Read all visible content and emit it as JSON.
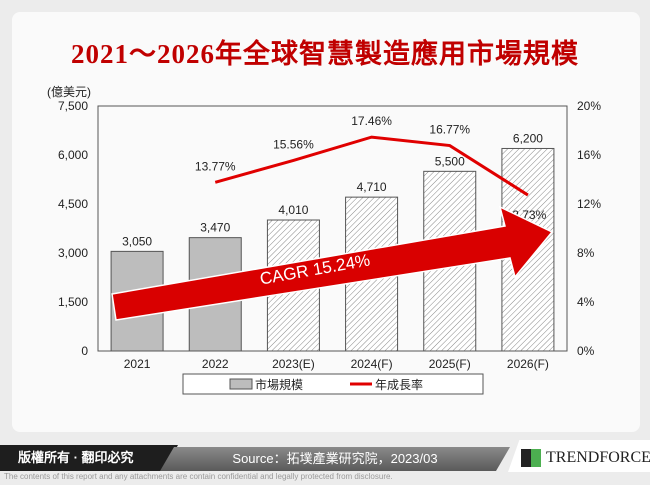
{
  "chart_data": {
    "type": "bar+line",
    "title": "2021～2026年全球智慧製造應用市場規模",
    "ylabel": "(億美元)",
    "categories": [
      "2021",
      "2022",
      "2023(E)",
      "2024(F)",
      "2025(F)",
      "2026(F)"
    ],
    "ylim": [
      0,
      7500
    ],
    "yticks": [
      "0",
      "1,500",
      "3,000",
      "4,500",
      "6,000",
      "7,500"
    ],
    "y2lim": [
      0,
      20
    ],
    "y2ticks": [
      "0%",
      "4%",
      "8%",
      "12%",
      "16%",
      "20%"
    ],
    "series": [
      {
        "name": "市場規模",
        "type": "bar",
        "values": [
          3050,
          3470,
          4010,
          4710,
          5500,
          6200
        ],
        "labels": [
          "3,050",
          "3,470",
          "4,010",
          "4,710",
          "5,500",
          "6,200"
        ],
        "color": "#bdbdbd"
      },
      {
        "name": "年成長率",
        "type": "line",
        "values": [
          null,
          13.77,
          15.56,
          17.46,
          16.77,
          12.73
        ],
        "labels": [
          "",
          "13.77%",
          "15.56%",
          "17.46%",
          "16.77%",
          "12.73%"
        ],
        "color": "#e00000"
      }
    ],
    "annotation": "CAGR 15.24%",
    "legend": "bottom"
  },
  "footer": {
    "copyright": "版權所有 · 翻印必究",
    "source": "Source：拓墣產業研究院，2023/03",
    "logo": "TRENDFORCE",
    "disclaimer": "The contents of this report and any attachments are contain confidential and legally protected from disclosure."
  }
}
